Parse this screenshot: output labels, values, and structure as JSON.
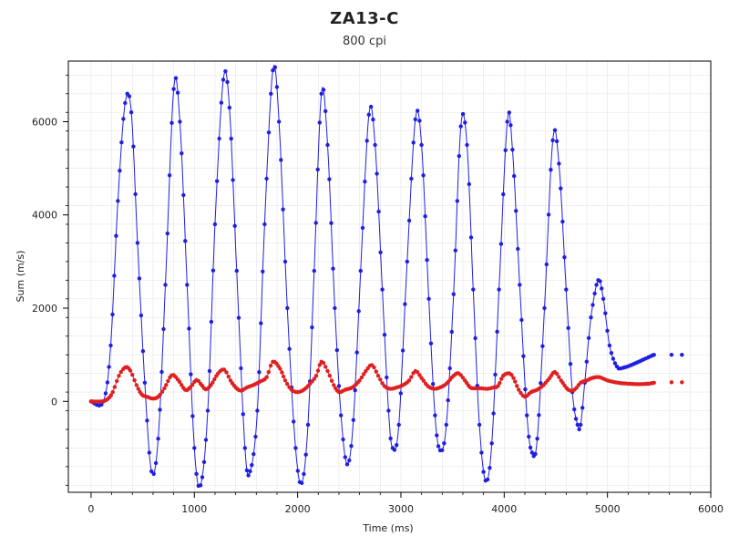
{
  "chart_data": {
    "type": "line",
    "title": "ZA13-C",
    "subtitle": "800 cpi",
    "xlabel": "Time (ms)",
    "ylabel": "Sum (m/s)",
    "xlim": [
      -220,
      6000
    ],
    "ylim": [
      -1950,
      7300
    ],
    "x_ticks": [
      "0",
      "1000",
      "2000",
      "3000",
      "4000",
      "5000",
      "6000"
    ],
    "y_ticks": [
      "0",
      "2000",
      "4000",
      "6000"
    ],
    "grid": true,
    "colors": {
      "series_blue": "#1f1fe0",
      "series_red": "#e02020",
      "grid": "#e6e6e6",
      "axis": "#000000"
    },
    "series": [
      {
        "name": "",
        "color": "#1f1fe0",
        "keypoints": [
          [
            0,
            0
          ],
          [
            120,
            0
          ],
          [
            190,
            1200
          ],
          [
            260,
            4300
          ],
          [
            330,
            6400
          ],
          [
            390,
            6200
          ],
          [
            450,
            3400
          ],
          [
            520,
            400
          ],
          [
            585,
            -1500
          ],
          [
            650,
            -800
          ],
          [
            720,
            2500
          ],
          [
            800,
            6700
          ],
          [
            860,
            6000
          ],
          [
            930,
            2500
          ],
          [
            1000,
            -1000
          ],
          [
            1060,
            -1800
          ],
          [
            1130,
            -200
          ],
          [
            1200,
            3800
          ],
          [
            1280,
            6900
          ],
          [
            1340,
            6300
          ],
          [
            1410,
            2800
          ],
          [
            1490,
            -1000
          ],
          [
            1540,
            -1500
          ],
          [
            1610,
            -200
          ],
          [
            1680,
            3800
          ],
          [
            1760,
            7100
          ],
          [
            1820,
            6000
          ],
          [
            1900,
            2000
          ],
          [
            1980,
            -1000
          ],
          [
            2040,
            -1750
          ],
          [
            2100,
            -500
          ],
          [
            2160,
            2800
          ],
          [
            2230,
            6600
          ],
          [
            2290,
            5500
          ],
          [
            2360,
            2000
          ],
          [
            2420,
            -300
          ],
          [
            2480,
            -1350
          ],
          [
            2540,
            -400
          ],
          [
            2610,
            2800
          ],
          [
            2690,
            6150
          ],
          [
            2750,
            5500
          ],
          [
            2820,
            2400
          ],
          [
            2880,
            -200
          ],
          [
            2920,
            -1000
          ],
          [
            2980,
            -500
          ],
          [
            3060,
            3000
          ],
          [
            3140,
            6050
          ],
          [
            3200,
            5500
          ],
          [
            3270,
            2200
          ],
          [
            3330,
            -300
          ],
          [
            3380,
            -1050
          ],
          [
            3440,
            -500
          ],
          [
            3510,
            2300
          ],
          [
            3580,
            5900
          ],
          [
            3640,
            5500
          ],
          [
            3700,
            2400
          ],
          [
            3760,
            -500
          ],
          [
            3820,
            -1700
          ],
          [
            3880,
            -900
          ],
          [
            3950,
            2400
          ],
          [
            4030,
            6000
          ],
          [
            4080,
            5400
          ],
          [
            4150,
            2500
          ],
          [
            4220,
            -300
          ],
          [
            4270,
            -1100
          ],
          [
            4320,
            -800
          ],
          [
            4390,
            2000
          ],
          [
            4470,
            5600
          ],
          [
            4530,
            5100
          ],
          [
            4600,
            2400
          ],
          [
            4660,
            200
          ],
          [
            4710,
            -500
          ],
          [
            4740,
            -500
          ],
          [
            4780,
            400
          ],
          [
            4840,
            1800
          ],
          [
            4910,
            2600
          ],
          [
            4960,
            2200
          ],
          [
            5020,
            1200
          ],
          [
            5090,
            750
          ],
          [
            5150,
            720
          ],
          [
            5250,
            800
          ],
          [
            5350,
            900
          ],
          [
            5450,
            1000
          ],
          [
            5620,
            1000
          ],
          [
            5720,
            1000
          ]
        ]
      },
      {
        "name": "",
        "color": "#e02020",
        "keypoints": [
          [
            0,
            0
          ],
          [
            100,
            0
          ],
          [
            160,
            50
          ],
          [
            210,
            200
          ],
          [
            270,
            550
          ],
          [
            330,
            730
          ],
          [
            380,
            660
          ],
          [
            440,
            350
          ],
          [
            490,
            150
          ],
          [
            540,
            100
          ],
          [
            600,
            60
          ],
          [
            650,
            100
          ],
          [
            710,
            280
          ],
          [
            780,
            560
          ],
          [
            840,
            470
          ],
          [
            910,
            250
          ],
          [
            960,
            300
          ],
          [
            1020,
            460
          ],
          [
            1060,
            380
          ],
          [
            1110,
            260
          ],
          [
            1160,
            350
          ],
          [
            1230,
            600
          ],
          [
            1290,
            680
          ],
          [
            1350,
            450
          ],
          [
            1400,
            300
          ],
          [
            1450,
            230
          ],
          [
            1510,
            300
          ],
          [
            1570,
            350
          ],
          [
            1640,
            430
          ],
          [
            1700,
            520
          ],
          [
            1760,
            850
          ],
          [
            1830,
            700
          ],
          [
            1880,
            450
          ],
          [
            1940,
            250
          ],
          [
            2000,
            200
          ],
          [
            2060,
            250
          ],
          [
            2120,
            380
          ],
          [
            2180,
            550
          ],
          [
            2230,
            850
          ],
          [
            2290,
            650
          ],
          [
            2350,
            350
          ],
          [
            2400,
            200
          ],
          [
            2460,
            250
          ],
          [
            2530,
            300
          ],
          [
            2600,
            450
          ],
          [
            2660,
            650
          ],
          [
            2720,
            780
          ],
          [
            2780,
            550
          ],
          [
            2840,
            330
          ],
          [
            2900,
            270
          ],
          [
            2960,
            300
          ],
          [
            3020,
            350
          ],
          [
            3080,
            450
          ],
          [
            3140,
            650
          ],
          [
            3200,
            500
          ],
          [
            3260,
            330
          ],
          [
            3320,
            270
          ],
          [
            3380,
            300
          ],
          [
            3440,
            380
          ],
          [
            3510,
            550
          ],
          [
            3560,
            600
          ],
          [
            3620,
            450
          ],
          [
            3670,
            300
          ],
          [
            3720,
            280
          ],
          [
            3780,
            280
          ],
          [
            3840,
            270
          ],
          [
            3900,
            300
          ],
          [
            3940,
            330
          ],
          [
            3990,
            550
          ],
          [
            4050,
            600
          ],
          [
            4090,
            500
          ],
          [
            4140,
            250
          ],
          [
            4200,
            100
          ],
          [
            4260,
            200
          ],
          [
            4320,
            250
          ],
          [
            4380,
            350
          ],
          [
            4440,
            500
          ],
          [
            4490,
            630
          ],
          [
            4550,
            450
          ],
          [
            4620,
            250
          ],
          [
            4680,
            250
          ],
          [
            4740,
            400
          ],
          [
            4800,
            450
          ],
          [
            4850,
            500
          ],
          [
            4920,
            520
          ],
          [
            5000,
            450
          ],
          [
            5100,
            400
          ],
          [
            5200,
            380
          ],
          [
            5300,
            370
          ],
          [
            5400,
            380
          ],
          [
            5450,
            400
          ],
          [
            5620,
            410
          ],
          [
            5720,
            410
          ]
        ]
      }
    ]
  }
}
